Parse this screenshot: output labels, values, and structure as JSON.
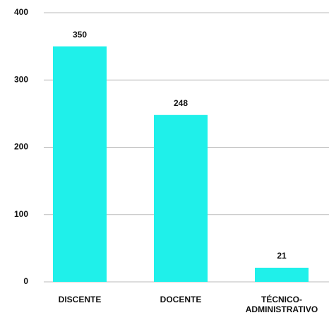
{
  "chart_data": {
    "type": "bar",
    "categories": [
      "DISCENTE",
      "DOCENTE",
      "TÉCNICO-ADMINISTRATIVO"
    ],
    "values": [
      350,
      248,
      21
    ],
    "color": "#1ff0ea",
    "ylim": [
      0,
      400
    ],
    "yticks": [
      0,
      100,
      200,
      300,
      400
    ],
    "grid": true
  }
}
